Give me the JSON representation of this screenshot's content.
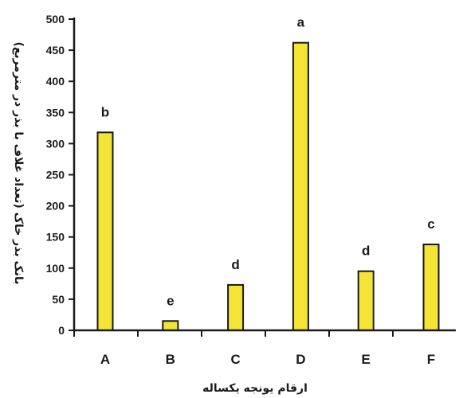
{
  "chart_data": {
    "type": "bar",
    "categories": [
      "A",
      "B",
      "C",
      "D",
      "E",
      "F"
    ],
    "values": [
      318,
      15,
      73,
      462,
      95,
      138
    ],
    "significance_labels": [
      "b",
      "e",
      "d",
      "a",
      "d",
      "c"
    ],
    "title": "",
    "xlabel": "ارقام یونجه یکساله",
    "ylabel": "بانک بذر خاک (تعداد غلاف با بذر در مترمربع)",
    "ylim": [
      0,
      500
    ],
    "yticks": [
      0,
      50,
      100,
      150,
      200,
      250,
      300,
      350,
      400,
      450,
      500
    ],
    "grid": false,
    "legend": "none",
    "colors": {
      "bar_fill": "#f3e436",
      "bar_stroke": "#1a1a1a",
      "axis": "#1a1a1a"
    }
  }
}
